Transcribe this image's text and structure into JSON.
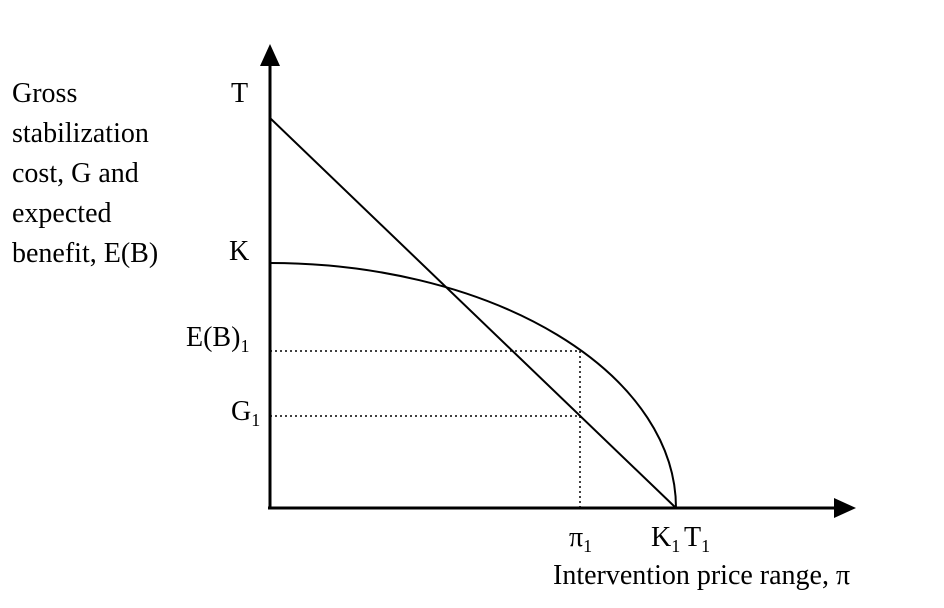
{
  "y_axis_label": [
    "Gross",
    "stabilization",
    "cost, G and",
    "expected",
    "benefit, E(B)"
  ],
  "x_axis_label": "Intervention price range, π",
  "labels": {
    "T": {
      "text": "T"
    },
    "K": {
      "text": "K"
    },
    "EB1": {
      "text": "E(B)",
      "sub": "1"
    },
    "G1": {
      "text": "G",
      "sub": "1"
    },
    "pi1": {
      "text": "π",
      "sub": "1"
    },
    "K1": {
      "text": "K",
      "sub": "1"
    },
    "T1": {
      "text": "T",
      "sub": "1"
    }
  }
}
